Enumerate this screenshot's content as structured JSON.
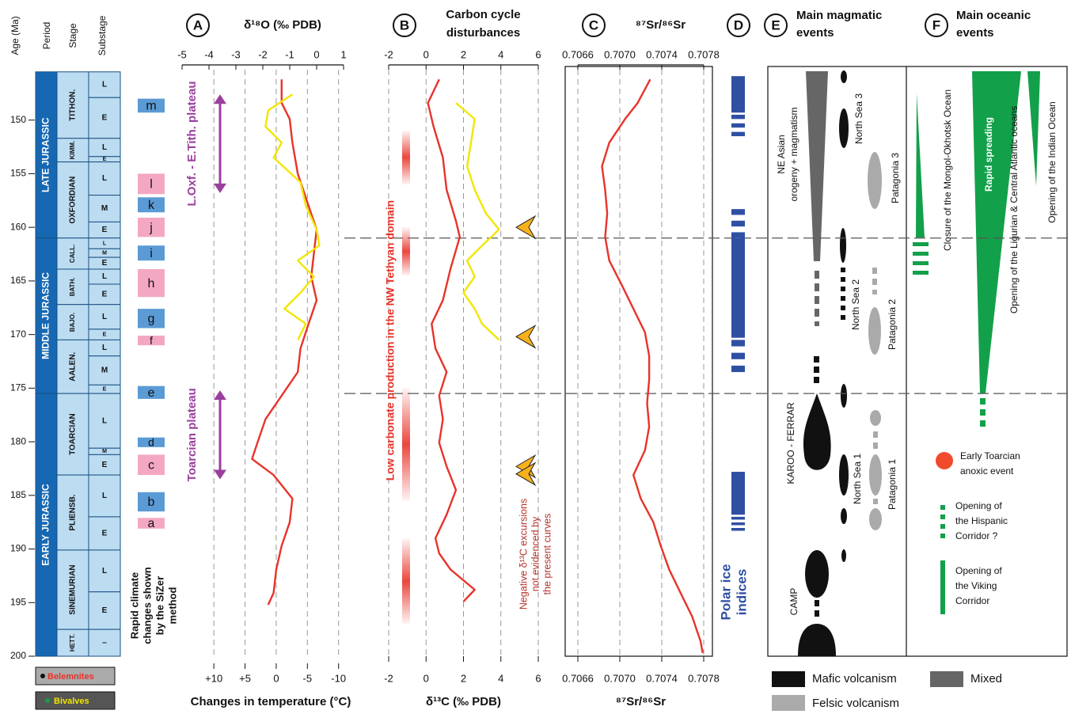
{
  "time_scale": {
    "title": "Age (Ma)",
    "headers": [
      "Period",
      "Stage",
      "Substage"
    ],
    "ylim": [
      200,
      145
    ],
    "yticks": [
      150,
      155,
      160,
      165,
      170,
      175,
      180,
      185,
      190,
      195,
      200
    ],
    "periods": [
      {
        "name": "LATE JURASSIC",
        "span": [
          145.5,
          161
        ]
      },
      {
        "name": "MIDDLE JURASSIC",
        "span": [
          161,
          175.5
        ]
      },
      {
        "name": "EARLY JURASSIC",
        "span": [
          175.5,
          200
        ]
      }
    ],
    "stages": [
      {
        "name": "TITHON.",
        "span": [
          145.5,
          151.7
        ]
      },
      {
        "name": "KIMM.",
        "span": [
          151.7,
          153.9
        ]
      },
      {
        "name": "OXFORDIAN",
        "span": [
          153.9,
          161
        ]
      },
      {
        "name": "CALL.",
        "span": [
          161,
          163.9
        ]
      },
      {
        "name": "BATH.",
        "span": [
          163.9,
          167.2
        ]
      },
      {
        "name": "BAJO.",
        "span": [
          167.2,
          170.5
        ]
      },
      {
        "name": "AALEN.",
        "span": [
          170.5,
          175.5
        ]
      },
      {
        "name": "TOARCIAN",
        "span": [
          175.5,
          183.1
        ]
      },
      {
        "name": "PLIENSB.",
        "span": [
          183.1,
          190.1
        ]
      },
      {
        "name": "SINEMURIAN",
        "span": [
          190.1,
          197.5
        ]
      },
      {
        "name": "HETT.",
        "span": [
          197.5,
          200
        ]
      }
    ],
    "substages": [
      {
        "name": "L",
        "span": [
          145.5,
          147.9
        ]
      },
      {
        "name": "E",
        "span": [
          147.9,
          151.7
        ]
      },
      {
        "name": "L",
        "span": [
          151.7,
          153.4
        ]
      },
      {
        "name": "E",
        "span": [
          153.4,
          153.9
        ]
      },
      {
        "name": "L",
        "span": [
          153.9,
          157
        ]
      },
      {
        "name": "M",
        "span": [
          157,
          159.5
        ]
      },
      {
        "name": "E",
        "span": [
          159.5,
          161
        ]
      },
      {
        "name": "L",
        "span": [
          161,
          162
        ]
      },
      {
        "name": "M",
        "span": [
          162,
          162.8
        ]
      },
      {
        "name": "E",
        "span": [
          162.8,
          163.9
        ]
      },
      {
        "name": "L",
        "span": [
          163.9,
          165.3
        ]
      },
      {
        "name": "E",
        "span": [
          165.3,
          167.2
        ]
      },
      {
        "name": "L",
        "span": [
          167.2,
          169.5
        ]
      },
      {
        "name": "E",
        "span": [
          169.5,
          170.5
        ]
      },
      {
        "name": "L",
        "span": [
          170.5,
          172
        ]
      },
      {
        "name": "M",
        "span": [
          172,
          174.7
        ]
      },
      {
        "name": "E",
        "span": [
          174.7,
          175.5
        ]
      },
      {
        "name": "L",
        "span": [
          175.5,
          180.6
        ]
      },
      {
        "name": "M",
        "span": [
          180.6,
          181.2
        ]
      },
      {
        "name": "E",
        "span": [
          181.2,
          183.1
        ]
      },
      {
        "name": "L",
        "span": [
          183.1,
          187
        ]
      },
      {
        "name": "E",
        "span": [
          187,
          190.1
        ]
      },
      {
        "name": "L",
        "span": [
          190.1,
          194
        ]
      },
      {
        "name": "E",
        "span": [
          194,
          197.5
        ]
      },
      {
        "name": "–",
        "span": [
          197.5,
          200
        ]
      }
    ],
    "boundary_lines": [
      161,
      175.5
    ]
  },
  "sizer": {
    "label": [
      "Rapid climate",
      "changes shown",
      "by the SiZer",
      "method"
    ],
    "events": [
      {
        "name": "m",
        "color": "#5b9bd5",
        "span": [
          148,
          149.3
        ]
      },
      {
        "name": "l",
        "color": "#f4a7c3",
        "span": [
          155,
          156.9
        ]
      },
      {
        "name": "k",
        "color": "#5b9bd5",
        "span": [
          157.2,
          158.6
        ]
      },
      {
        "name": "j",
        "color": "#f4a7c3",
        "span": [
          159.1,
          160.9
        ]
      },
      {
        "name": "i",
        "color": "#5b9bd5",
        "span": [
          161.7,
          163.1
        ]
      },
      {
        "name": "h",
        "color": "#f4a7c3",
        "span": [
          163.9,
          166.5
        ]
      },
      {
        "name": "g",
        "color": "#5b9bd5",
        "span": [
          167.6,
          169.4
        ]
      },
      {
        "name": "f",
        "color": "#f4a7c3",
        "span": [
          170.1,
          171
        ]
      },
      {
        "name": "e",
        "color": "#5b9bd5",
        "span": [
          174.8,
          176
        ]
      },
      {
        "name": "d",
        "color": "#5b9bd5",
        "span": [
          179.6,
          180.5
        ]
      },
      {
        "name": "c",
        "color": "#f4a7c3",
        "span": [
          181.2,
          183.1
        ]
      },
      {
        "name": "b",
        "color": "#5b9bd5",
        "span": [
          184.7,
          186.5
        ]
      },
      {
        "name": "a",
        "color": "#f4a7c3",
        "span": [
          187.1,
          188.1
        ]
      }
    ]
  },
  "chart_data": [
    {
      "type": "line",
      "panel": "A",
      "title": "δ¹⁸O  (‰ PDB)",
      "xlim": [
        -5,
        1
      ],
      "xticks": [
        -5,
        -4,
        -3,
        -2,
        -1,
        0,
        1
      ],
      "x2lim": [
        15.1,
        -10.8
      ],
      "x2ticks": [
        {
          "value": 10,
          "label": "+10"
        },
        {
          "value": 5,
          "label": "+5"
        },
        0,
        -5,
        -10
      ],
      "x2label": "Changes in temperature (°C)",
      "grid": "x2",
      "series": [
        {
          "color": "#e8332a",
          "age": [
            146.2,
            148.4,
            149.9,
            152.1,
            155.0,
            158.0,
            160.2,
            162.4,
            164.6,
            166.8,
            169.0,
            171.3,
            173.5,
            175.7,
            177.9,
            180.1,
            181.6,
            183.1,
            185.3,
            187.5,
            189.7,
            191.9,
            194.1,
            195.2
          ],
          "values": [
            -1.3,
            -1.3,
            -1.0,
            -0.9,
            -0.7,
            -0.3,
            0.0,
            -0.1,
            -0.2,
            0.0,
            -0.3,
            -0.6,
            -0.7,
            -1.3,
            -1.9,
            -2.2,
            -2.4,
            -1.6,
            -0.9,
            -1.0,
            -1.3,
            -1.5,
            -1.6,
            -1.8
          ]
        },
        {
          "color": "#f2e600",
          "age": [
            147.6,
            149.1,
            150.6,
            152.1,
            153.5,
            155.8,
            158.0,
            160.2,
            161.7,
            163.1,
            164.6,
            166.1,
            167.6,
            169.0,
            170.5
          ],
          "values": [
            -0.9,
            -1.8,
            -1.9,
            -1.3,
            -1.6,
            -0.6,
            -0.4,
            0.0,
            0.1,
            -0.7,
            -0.1,
            -0.6,
            -1.2,
            -0.4,
            -0.7
          ]
        }
      ],
      "annotations": [
        {
          "label": "L.Oxf. - E.Tith. plateau",
          "span": [
            147.6,
            156.8
          ]
        },
        {
          "label": "Toarcian plateau",
          "span": [
            175.2,
            183.5
          ]
        }
      ]
    },
    {
      "type": "line",
      "panel": "B",
      "title": [
        "Carbon cycle",
        "disturbances"
      ],
      "xlim": [
        -2,
        6
      ],
      "xticks": [
        -2,
        0,
        2,
        4,
        6
      ],
      "xlabel": "δ¹³C  (‰ PDB)",
      "grid": "x",
      "series": [
        {
          "color": "#e8332a",
          "age": [
            146.2,
            148.4,
            150.6,
            153.5,
            156.5,
            159.4,
            160.9,
            163.9,
            166.8,
            169.0,
            171.3,
            173.5,
            175.7,
            177.9,
            180.1,
            182.3,
            184.5,
            186.8,
            189.0,
            190.4,
            191.9,
            193.8,
            194.9
          ],
          "values": [
            0.7,
            0.1,
            0.4,
            0.9,
            1.1,
            1.6,
            1.8,
            1.3,
            0.9,
            0.3,
            0.5,
            1.1,
            0.7,
            0.9,
            0.7,
            1.1,
            1.6,
            1.1,
            0.5,
            0.7,
            1.3,
            2.6,
            2.0
          ]
        },
        {
          "color": "#f2e600",
          "age": [
            148.4,
            149.9,
            152.1,
            154.3,
            156.5,
            158.7,
            160.2,
            161.7,
            163.1,
            164.6,
            166.1,
            167.6,
            169.0,
            170.5
          ],
          "values": [
            1.6,
            2.6,
            2.4,
            2.2,
            2.6,
            3.2,
            3.9,
            3.0,
            2.2,
            2.6,
            2.0,
            2.6,
            3.0,
            3.9
          ]
        }
      ],
      "low_carbonate": {
        "label": "Low carbonate production in the NW Tethyan domain",
        "intervals": [
          [
            151,
            156
          ],
          [
            160,
            164.5
          ],
          [
            175,
            185.5
          ],
          [
            189,
            197
          ]
        ]
      },
      "disturbance_ages": [
        160,
        170.2,
        182.3,
        183
      ],
      "note": [
        "Negative δ¹³C excursions",
        "not evidenced by",
        "the present curves"
      ]
    },
    {
      "type": "line",
      "panel": "C",
      "title": "⁸⁷Sr/⁸⁶Sr",
      "xlim": [
        0.7066,
        0.7078
      ],
      "xticks": [
        0.7066,
        {
          "value": 0.707,
          "label": "0.7070"
        },
        0.7074,
        0.7078
      ],
      "xlabel": "⁸⁷Sr/⁸⁶Sr",
      "grid": "x",
      "series": [
        {
          "color": "#e8332a",
          "age": [
            146.2,
            148.4,
            149.9,
            152.1,
            154.3,
            156.5,
            158.7,
            160.9,
            163.1,
            165.4,
            167.6,
            169.8,
            172.0,
            174.2,
            176.4,
            178.6,
            180.8,
            183.1,
            185.3,
            187.5,
            189.7,
            191.9,
            194.1,
            196.3,
            198.6,
            199.7
          ],
          "values": [
            0.70729,
            0.70717,
            0.70705,
            0.7069,
            0.70683,
            0.70686,
            0.70688,
            0.70686,
            0.7069,
            0.70702,
            0.70713,
            0.70724,
            0.70728,
            0.70728,
            0.70726,
            0.70728,
            0.70724,
            0.70713,
            0.7072,
            0.70732,
            0.70739,
            0.70747,
            0.70758,
            0.70769,
            0.70777,
            0.70779
          ]
        }
      ]
    }
  ],
  "polar_ice": {
    "panel": "D",
    "label": [
      "Polar ice",
      "indices"
    ],
    "intervals": [
      {
        "span": [
          145.9,
          149.3
        ],
        "style": "solid"
      },
      {
        "span": [
          149.5,
          151.5
        ],
        "style": "dashed"
      },
      {
        "span": [
          158.3,
          161
        ],
        "style": "dashed"
      },
      {
        "span": [
          161,
          170.3
        ],
        "style": "solid"
      },
      {
        "span": [
          170.5,
          173.5
        ],
        "style": "dashed"
      },
      {
        "span": [
          182.8,
          186.8
        ],
        "style": "solid"
      },
      {
        "span": [
          187,
          188.3
        ],
        "style": "dashed"
      }
    ]
  },
  "magmatic": {
    "panel": "E",
    "title": [
      "Main magmatic",
      "events"
    ],
    "labels": {
      "ne_asian": [
        "NE Asian",
        "orogeny + magmatism"
      ],
      "north_sea_3": "North Sea 3",
      "patagonia_3": "Patagonia 3",
      "north_sea_2": "North Sea 2",
      "patagonia_2": "Patagonia 2",
      "karoo": "KAROO - FERRAR",
      "north_sea_1": "North Sea 1",
      "patagonia_1": "Patagonia 1",
      "camp": "CAMP"
    }
  },
  "oceanic": {
    "panel": "F",
    "title": [
      "Main oceanic",
      "events"
    ],
    "labels": {
      "mongol": "Closure of the Mongol-Okhotsk Ocean",
      "rapid": "Rapid spreading",
      "ligurian": "Opening of the Ligurian & Central Atlantic oceans",
      "indian": "Opening of the Indian Ocean",
      "anoxic": [
        "Early Toarcian",
        "anoxic event"
      ],
      "hispanic": [
        "Opening of",
        "the Hispanic",
        "Corridor ?"
      ],
      "viking": [
        "Opening of",
        "the Viking",
        "Corridor"
      ]
    }
  },
  "legend": {
    "mafic": "Mafic volcanism",
    "mixed": "Mixed",
    "felsic": "Felsic volcanism",
    "belemnites": "Belemnites",
    "bivalves": "Bivalves"
  }
}
